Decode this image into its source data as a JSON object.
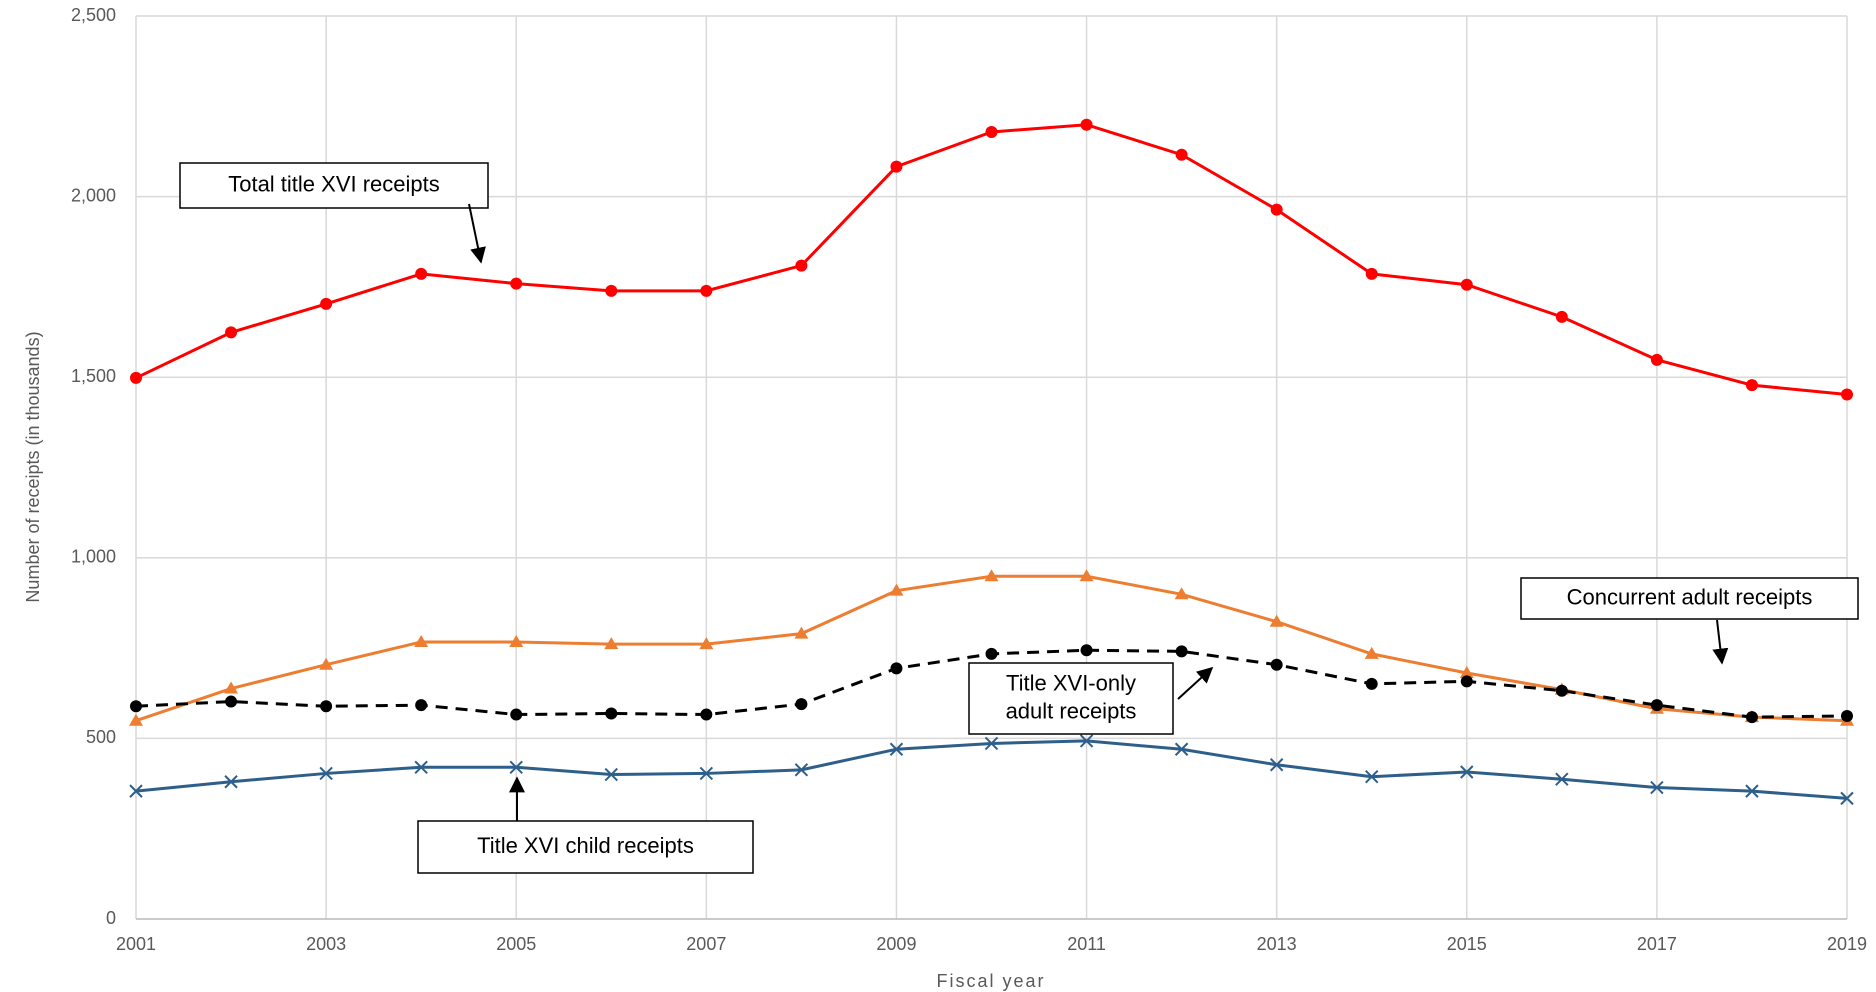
{
  "chart_data": {
    "type": "line",
    "y_label": "Number of receipts (in thousands)",
    "x_label": "Fiscal year",
    "x": [
      2001,
      2002,
      2003,
      2004,
      2005,
      2006,
      2007,
      2008,
      2009,
      2010,
      2011,
      2012,
      2013,
      2014,
      2015,
      2016,
      2017,
      2018,
      2019
    ],
    "xlim": [
      2001,
      2019
    ],
    "xticks": [
      2001,
      2003,
      2005,
      2007,
      2009,
      2011,
      2013,
      2015,
      2017,
      2019
    ],
    "ylim": [
      0,
      2500
    ],
    "yticks": [
      0,
      500,
      {
        "value": 1000,
        "label": "1,000"
      },
      {
        "value": 1500,
        "label": "1,500"
      },
      {
        "value": 2000,
        "label": "2,000"
      },
      {
        "value": 2500,
        "label": "2,500"
      }
    ],
    "grid": true,
    "series": [
      {
        "color": "#ff0000",
        "marker": "circle",
        "dash": false,
        "values": [
          1498,
          1624,
          1703,
          1786,
          1759,
          1739,
          1739,
          1809,
          2083,
          2179,
          2199,
          2116,
          1964,
          1786,
          1756,
          1667,
          1548,
          1478,
          1452
        ]
      },
      {
        "color": "#ed7d31",
        "marker": "triangle",
        "dash": false,
        "values": [
          549,
          638,
          704,
          767,
          767,
          761,
          761,
          790,
          909,
          949,
          949,
          899,
          823,
          734,
          681,
          635,
          582,
          559,
          549
        ]
      },
      {
        "color": "#000000",
        "marker": "circle",
        "dash": true,
        "values": [
          589,
          602,
          589,
          592,
          566,
          569,
          566,
          595,
          694,
          734,
          744,
          741,
          704,
          651,
          658,
          632,
          592,
          559,
          562
        ]
      },
      {
        "color": "#2e5f8a",
        "marker": "x",
        "dash": false,
        "values": [
          354,
          380,
          403,
          420,
          420,
          400,
          403,
          413,
          470,
          486,
          493,
          470,
          427,
          394,
          407,
          387,
          364,
          354,
          334
        ]
      }
    ],
    "annotations": [
      {
        "lines": [
          "Total title XVI receipts"
        ]
      },
      {
        "lines": [
          "Concurrent adult receipts"
        ]
      },
      {
        "lines": [
          "Title XVI-only",
          "adult receipts"
        ]
      },
      {
        "lines": [
          "Title XVI child receipts"
        ]
      }
    ]
  }
}
